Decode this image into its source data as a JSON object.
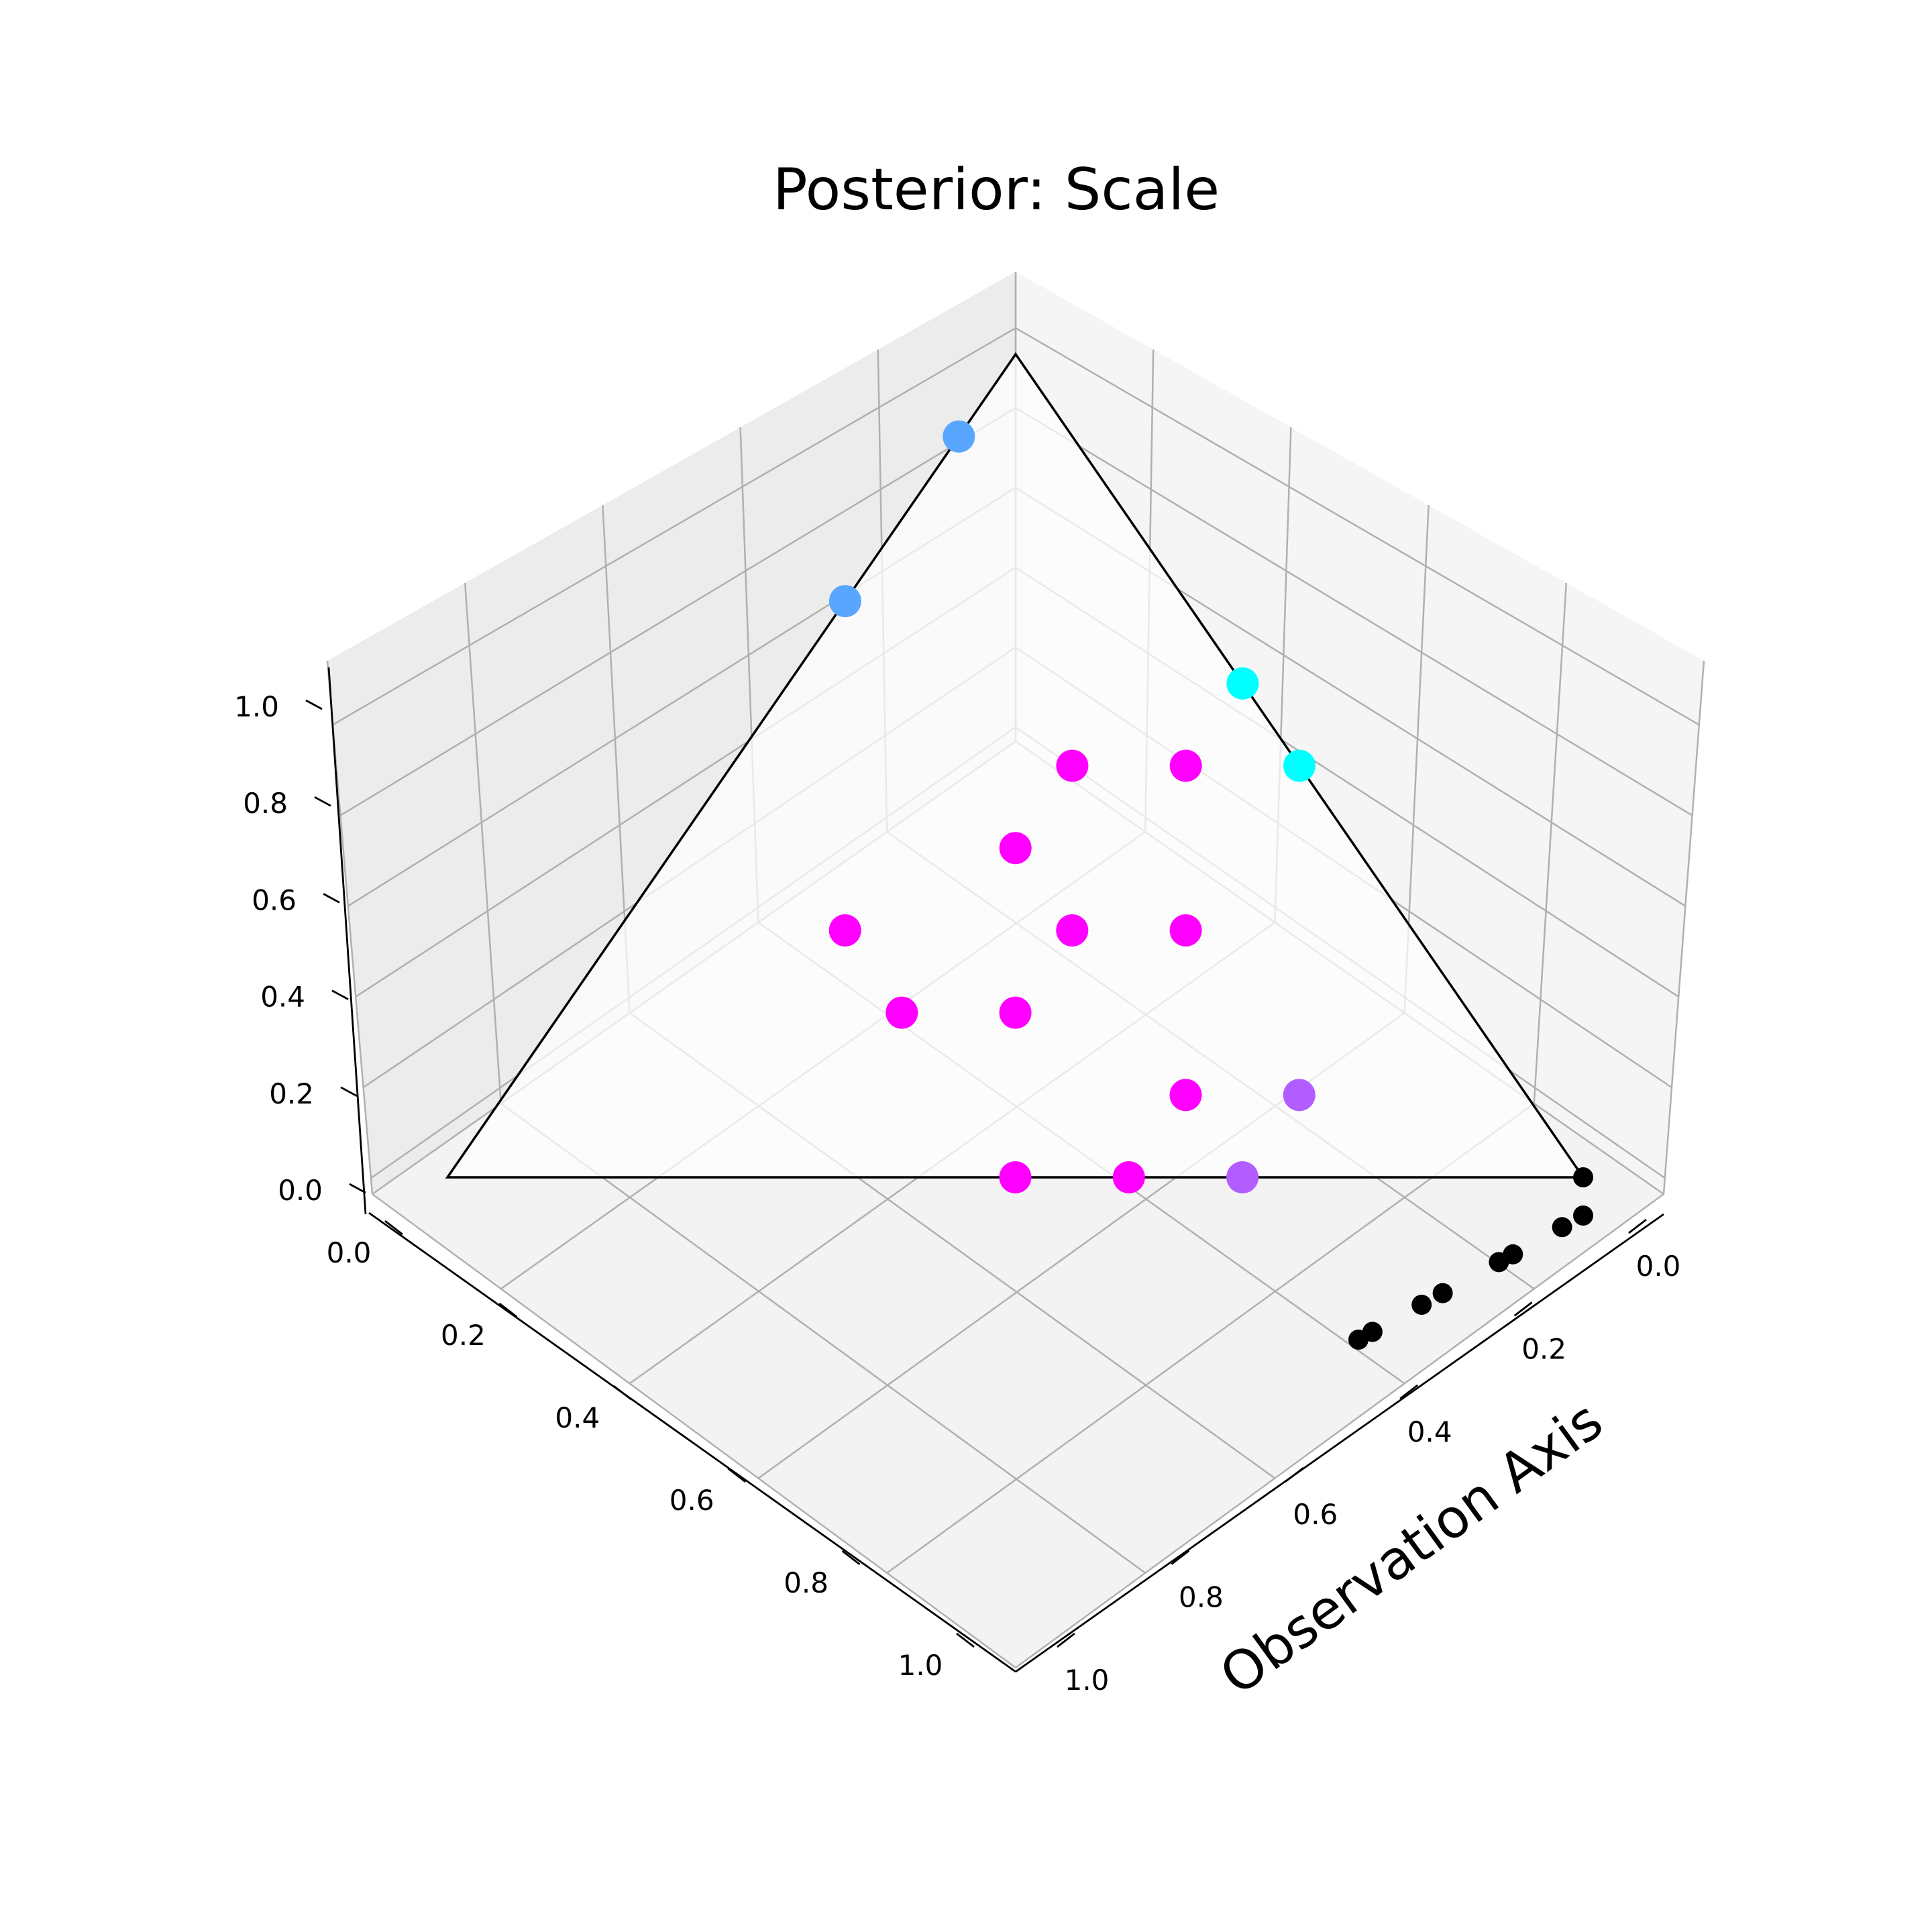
{
  "chart_data": {
    "type": "scatter",
    "projection": "3d",
    "title": "Posterior: Scale",
    "xlabel": "",
    "ylabel": "Observation Axis",
    "zlabel": "",
    "xlim": [
      0,
      1
    ],
    "ylim": [
      0,
      1
    ],
    "zlim": [
      0,
      1
    ],
    "ticks": {
      "x": [
        "0.0",
        "0.2",
        "0.4",
        "0.6",
        "0.8",
        "1.0"
      ],
      "y": [
        "0.0",
        "0.2",
        "0.4",
        "0.6",
        "0.8",
        "1.0"
      ],
      "z": [
        "0.0",
        "0.2",
        "0.4",
        "0.6",
        "0.8",
        "1.0"
      ]
    },
    "grid": true,
    "simplex_vertices": [
      [
        1,
        0,
        0
      ],
      [
        0,
        1,
        0
      ],
      [
        0,
        0,
        1
      ]
    ],
    "series": [
      {
        "color": "#58a6ff",
        "points": [
          [
            0.1,
            0,
            0.9
          ],
          [
            0.3,
            0,
            0.7
          ]
        ]
      },
      {
        "color": "#00ffff",
        "points": [
          [
            0,
            0.4,
            0.6
          ],
          [
            0,
            0.5,
            0.5
          ]
        ]
      },
      {
        "color": "#ff00ff",
        "points": [
          [
            0.2,
            0.3,
            0.5
          ],
          [
            0.1,
            0.4,
            0.5
          ],
          [
            0.3,
            0.3,
            0.4
          ],
          [
            0.2,
            0.5,
            0.3
          ],
          [
            0.3,
            0.4,
            0.3
          ],
          [
            0.5,
            0.2,
            0.3
          ],
          [
            0.4,
            0.4,
            0.2
          ],
          [
            0.5,
            0.3,
            0.2
          ],
          [
            0.3,
            0.6,
            0.1
          ],
          [
            0.4,
            0.6,
            0.0
          ],
          [
            0.5,
            0.5,
            0.0
          ]
        ]
      },
      {
        "color": "#b25dff",
        "points": [
          [
            0.2,
            0.7,
            0.1
          ],
          [
            0.3,
            0.7,
            0.0
          ]
        ]
      },
      {
        "color": "#000000",
        "points": [
          [
            0,
            1,
            0
          ],
          [
            0,
            0.1,
            0
          ],
          [
            0,
            0.13,
            0
          ],
          [
            0,
            0.2,
            0
          ],
          [
            0,
            0.22,
            0
          ],
          [
            0,
            0.3,
            0
          ],
          [
            0,
            0.33,
            0
          ],
          [
            0,
            0.4,
            0
          ],
          [
            0,
            0.42,
            0
          ]
        ]
      }
    ]
  }
}
